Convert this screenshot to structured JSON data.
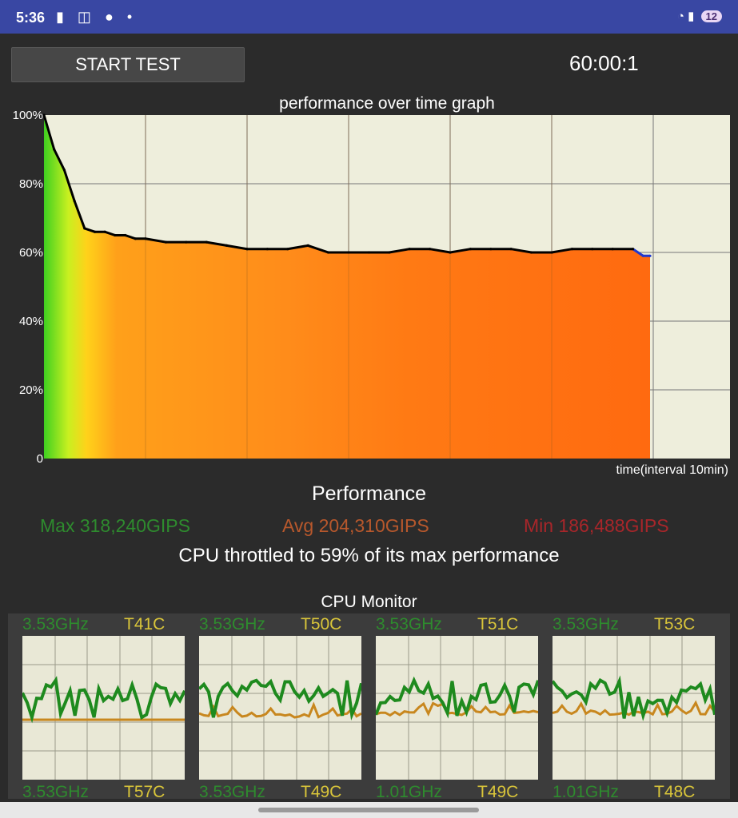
{
  "status_bar": {
    "time": "5:36",
    "left_icons": [
      "battery-saver-icon",
      "screenshot-icon",
      "account-icon",
      "dot-icon"
    ],
    "right_icons": [
      "wifi-icon",
      "signal-icon"
    ],
    "badge": "12"
  },
  "controls": {
    "start_label": "START TEST",
    "timer": "60:00:1"
  },
  "graph": {
    "title": "performance over time graph",
    "y_ticks": [
      "100%",
      "80%",
      "60%",
      "40%",
      "20%",
      "0"
    ],
    "x_label": "time(interval 10min)"
  },
  "chart_data": {
    "type": "area",
    "title": "performance over time graph",
    "xlabel": "time(interval 10min)",
    "ylabel": "",
    "x_unit": "minutes",
    "ylim": [
      0,
      100
    ],
    "xlim": [
      0,
      60
    ],
    "grid": true,
    "x": [
      0,
      1,
      2,
      3,
      4,
      5,
      6,
      7,
      8,
      9,
      10,
      12,
      14,
      16,
      18,
      20,
      22,
      24,
      26,
      28,
      30,
      32,
      34,
      36,
      38,
      40,
      42,
      44,
      46,
      48,
      50,
      52,
      54,
      56,
      58,
      59,
      60
    ],
    "values": [
      100,
      90,
      84,
      75,
      67,
      66,
      66,
      65,
      65,
      64,
      64,
      63,
      63,
      63,
      62,
      61,
      61,
      61,
      62,
      60,
      60,
      60,
      60,
      61,
      61,
      60,
      61,
      61,
      61,
      60,
      60,
      61,
      61,
      61,
      61,
      59,
      59
    ]
  },
  "performance": {
    "title": "Performance",
    "max": "Max 318,240GIPS",
    "avg": "Avg 204,310GIPS",
    "min": "Min 186,488GIPS",
    "throttle": "CPU throttled to 59% of its max performance"
  },
  "cpu_monitor": {
    "title": "CPU Monitor",
    "cores": [
      {
        "freq": "3.53GHz",
        "temp": "T41C",
        "freq2": "3.53GHz",
        "temp2": "T57C"
      },
      {
        "freq": "3.53GHz",
        "temp": "T50C",
        "freq2": "3.53GHz",
        "temp2": "T49C"
      },
      {
        "freq": "3.53GHz",
        "temp": "T51C",
        "freq2": "1.01GHz",
        "temp2": "T49C"
      },
      {
        "freq": "3.53GHz",
        "temp": "T53C",
        "freq2": "1.01GHz",
        "temp2": "T48C"
      }
    ],
    "colors": {
      "freq_line": "#1e8a1e",
      "temp_line": "#c8871e",
      "grid_bg": "#e9e8d6"
    }
  }
}
